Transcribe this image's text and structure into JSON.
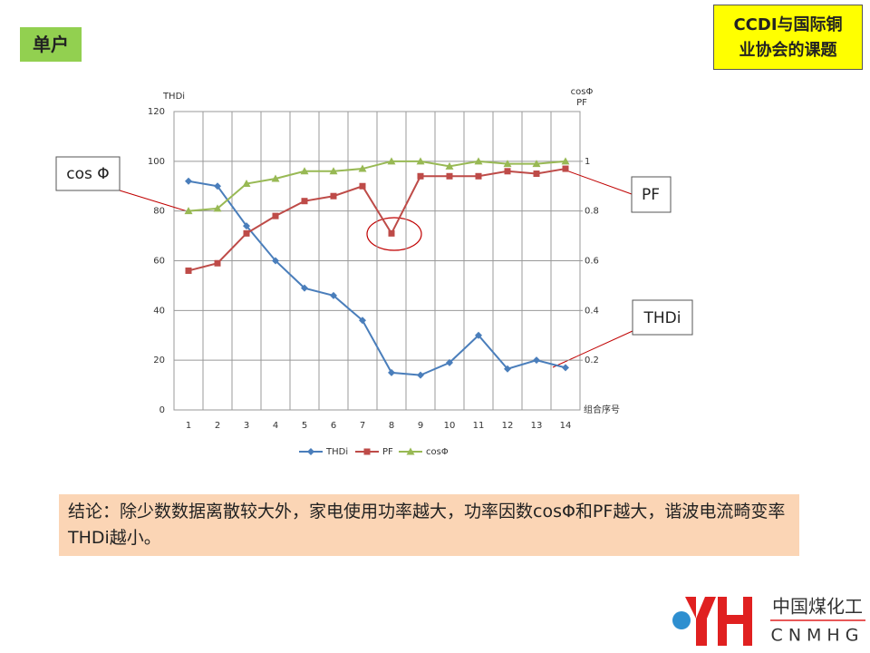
{
  "header": {
    "tag": "单户",
    "topic": [
      "CCDI与国际铜",
      "业协会的课题"
    ]
  },
  "chart_data": {
    "type": "line",
    "y_label": "THDi",
    "y2_label": [
      "cosΦ",
      "PF"
    ],
    "x_label": "组合序号",
    "categories": [
      "1",
      "2",
      "3",
      "4",
      "5",
      "6",
      "7",
      "8",
      "9",
      "10",
      "11",
      "12",
      "13",
      "14"
    ],
    "ylim": [
      0,
      120
    ],
    "yticks": [
      0,
      20,
      40,
      60,
      80,
      100,
      120
    ],
    "y2lim": [
      0,
      1.2
    ],
    "y2ticks": [
      0.2,
      0.4,
      0.6,
      0.8,
      1
    ],
    "grid": true,
    "series": [
      {
        "name": "THDi",
        "color": "#4a7ebb",
        "marker": "diamond",
        "values": [
          92,
          90,
          74,
          60,
          49,
          46,
          36,
          15,
          14,
          19,
          30,
          16.5,
          20,
          17
        ]
      },
      {
        "name": "PF",
        "color": "#be4b48",
        "marker": "square",
        "axis": "y2",
        "values": [
          0.56,
          0.59,
          0.71,
          0.78,
          0.84,
          0.86,
          0.9,
          0.71,
          0.94,
          0.94,
          0.94,
          0.96,
          0.95,
          0.97
        ]
      },
      {
        "name": "cosΦ",
        "color": "#98b954",
        "marker": "triangle",
        "axis": "y2",
        "values": [
          0.8,
          0.81,
          0.91,
          0.93,
          0.96,
          0.96,
          0.97,
          1,
          1,
          0.98,
          1,
          0.99,
          0.99,
          1
        ]
      }
    ],
    "annotations": [
      "cos Φ",
      "PF",
      "THDi"
    ]
  },
  "conclusion": "结论：除少数数据离散较大外，家电使用功率越大，功率因数cosΦ和PF越大，谐波电流畸变率THDi越小。",
  "logo": {
    "name": "中国煤化工",
    "abbr": "CNMHG"
  }
}
